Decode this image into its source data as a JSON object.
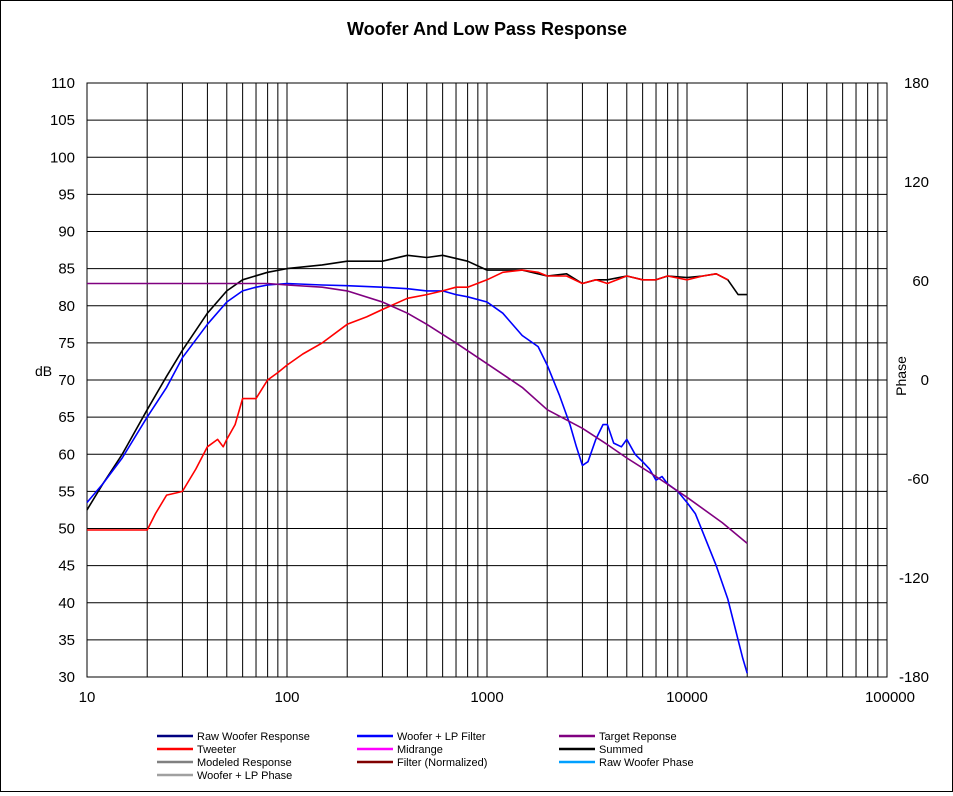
{
  "chart_data": {
    "type": "line",
    "title": "Woofer  And Low Pass Response",
    "xlabel": "",
    "ylabel": "dB",
    "y2label": "Phase",
    "xscale": "log",
    "xlim": [
      10,
      100000
    ],
    "ylim": [
      30,
      110
    ],
    "y2lim": [
      -180,
      180
    ],
    "grid": true,
    "x_ticks": [
      10,
      100,
      1000,
      10000,
      100000
    ],
    "x_tick_labels": [
      "10",
      "100",
      "1000",
      "10000",
      "100000"
    ],
    "y_ticks": [
      30,
      35,
      40,
      45,
      50,
      55,
      60,
      65,
      70,
      75,
      80,
      85,
      90,
      95,
      100,
      105,
      110
    ],
    "y_tick_labels": [
      "30",
      "35",
      "40",
      "45",
      "50",
      "55",
      "60",
      "65",
      "70",
      "75",
      "80",
      "85",
      "90",
      "95",
      "100",
      "105",
      "110"
    ],
    "y2_ticks": [
      -180,
      -120,
      -60,
      0,
      60,
      120,
      180
    ],
    "y2_tick_labels": [
      "-180",
      "-120",
      "-60",
      "0",
      "60",
      "120",
      "180"
    ],
    "legend_position": "bottom",
    "legend": [
      {
        "name": "Raw Woofer Response",
        "color": "#000080"
      },
      {
        "name": "Woofer + LP Filter",
        "color": "#0000ff"
      },
      {
        "name": "Target Reponse",
        "color": "#800080"
      },
      {
        "name": "Tweeter",
        "color": "#ff0000"
      },
      {
        "name": "Midrange",
        "color": "#ff00ff"
      },
      {
        "name": "Summed",
        "color": "#000000"
      },
      {
        "name": "Modeled Response",
        "color": "#808080"
      },
      {
        "name": "Filter (Normalized)",
        "color": "#800000"
      },
      {
        "name": "Raw Woofer Phase",
        "color": "#00a0ff"
      },
      {
        "name": "Woofer + LP  Phase",
        "color": "#a0a0a0"
      }
    ],
    "series": [
      {
        "name": "Summed",
        "color": "#000000",
        "x": [
          10,
          12,
          15,
          20,
          25,
          30,
          40,
          50,
          60,
          80,
          100,
          150,
          200,
          300,
          400,
          500,
          600,
          800,
          1000,
          1500,
          2000,
          2500,
          3000,
          3500,
          4000,
          5000,
          6000,
          7000,
          8000,
          10000,
          12000,
          14000,
          16000,
          18000,
          20000
        ],
        "y": [
          52.5,
          56,
          60,
          66,
          70.5,
          74,
          79,
          82,
          83.5,
          84.5,
          85,
          85.5,
          86,
          86,
          86.8,
          86.5,
          86.8,
          86,
          84.8,
          84.8,
          84,
          84.3,
          83,
          83.5,
          83.5,
          84,
          83.5,
          83.5,
          84,
          83.8,
          84,
          84.3,
          83.5,
          81.5,
          81.5
        ]
      },
      {
        "name": "Woofer + LP Filter",
        "color": "#0000ff",
        "x": [
          10,
          12,
          15,
          20,
          25,
          30,
          40,
          50,
          60,
          70,
          80,
          100,
          150,
          200,
          300,
          400,
          500,
          600,
          700,
          800,
          1000,
          1200,
          1500,
          1800,
          2000,
          2300,
          2600,
          2800,
          3000,
          3200,
          3500,
          3800,
          4000,
          4300,
          4700,
          5000,
          5500,
          6000,
          6500,
          7000,
          7500,
          8000,
          9000,
          10000,
          11000,
          12000,
          14000,
          16000,
          18000,
          19000,
          20000
        ],
        "y": [
          53.5,
          56,
          59.5,
          65,
          69,
          73,
          77.5,
          80.5,
          82,
          82.5,
          82.8,
          83,
          82.8,
          82.7,
          82.5,
          82.3,
          82,
          82,
          81.5,
          81.2,
          80.5,
          79,
          76,
          74.5,
          72,
          68,
          64,
          61,
          58.5,
          59,
          62,
          64,
          64,
          61.5,
          61,
          62,
          60,
          59,
          58,
          56.5,
          57,
          56,
          55,
          53.5,
          52,
          49.5,
          45,
          40.5,
          35,
          32.5,
          30.5
        ]
      },
      {
        "name": "Tweeter",
        "color": "#ff0000",
        "x": [
          10,
          15,
          20,
          22,
          25,
          28,
          30,
          35,
          40,
          45,
          48,
          50,
          55,
          60,
          65,
          70,
          80,
          90,
          100,
          120,
          150,
          200,
          250,
          300,
          400,
          500,
          600,
          700,
          800,
          1000,
          1200,
          1500,
          1800,
          2000,
          2500,
          3000,
          3500,
          4000,
          5000,
          6000,
          7000,
          8000,
          10000,
          12000,
          14000,
          16000
        ],
        "y": [
          49.8,
          49.8,
          49.8,
          52,
          54.5,
          54.8,
          55,
          58,
          61,
          62,
          61,
          62,
          64,
          67.5,
          67.5,
          67.5,
          70,
          71,
          72,
          73.5,
          75,
          77.5,
          78.5,
          79.5,
          81,
          81.5,
          82,
          82.5,
          82.5,
          83.5,
          84.5,
          84.8,
          84.5,
          84,
          84,
          83,
          83.5,
          83,
          84,
          83.5,
          83.5,
          84,
          83.5,
          84,
          84.3,
          83.5
        ]
      },
      {
        "name": "Target Reponse",
        "color": "#800080",
        "x": [
          10,
          20,
          40,
          60,
          80,
          100,
          150,
          200,
          300,
          400,
          500,
          700,
          1000,
          1500,
          2000,
          3000,
          4000,
          5000,
          7000,
          10000,
          15000,
          20000
        ],
        "y": [
          83,
          83,
          83,
          83,
          83,
          82.8,
          82.5,
          82,
          80.5,
          79,
          77.5,
          75,
          72.2,
          69,
          66,
          63.5,
          61.3,
          59.5,
          57,
          54.2,
          50.8,
          48
        ]
      }
    ]
  }
}
